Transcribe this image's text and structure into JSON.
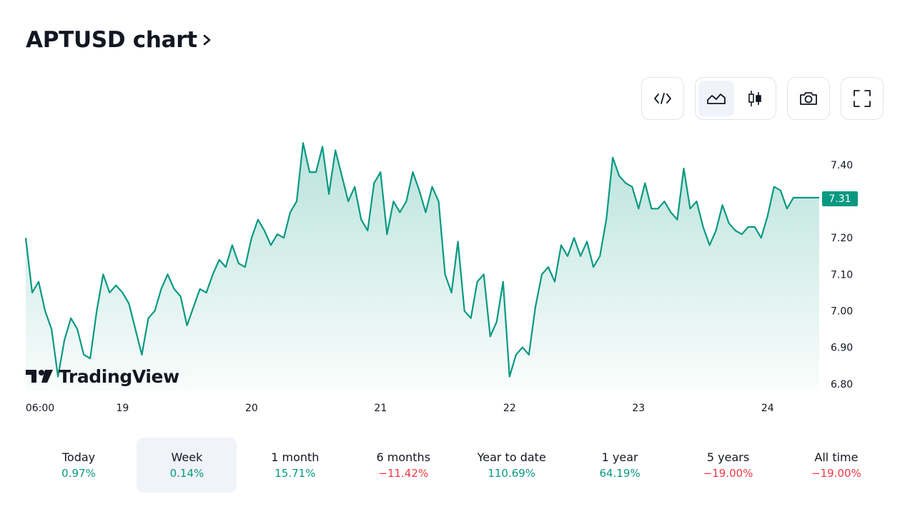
{
  "header": {
    "title": "APTUSD chart",
    "chevron": "chevron-right-icon"
  },
  "toolbar": {
    "buttons": [
      {
        "name": "embed-button",
        "icon": "code-icon"
      },
      {
        "name": "area-chart-button",
        "icon": "area-chart-icon",
        "active": true
      },
      {
        "name": "candle-chart-button",
        "icon": "candlestick-icon"
      },
      {
        "name": "screenshot-button",
        "icon": "camera-icon"
      },
      {
        "name": "fullscreen-button",
        "icon": "fullscreen-icon"
      }
    ]
  },
  "logo": {
    "text": "TradingView",
    "icon": "tradingview-logo-icon"
  },
  "current_price": "7.31",
  "colors": {
    "accent": "#089981",
    "negative": "#f23645",
    "active_bg": "#f0f3fa"
  },
  "chart_data": {
    "type": "area",
    "title": "",
    "xlabel": "",
    "ylabel": "",
    "ylim": [
      6.78,
      7.48
    ],
    "y_ticks": [
      "6.80",
      "6.90",
      "7.00",
      "7.10",
      "7.20",
      "7.30",
      "7.40"
    ],
    "x_ticks": [
      {
        "label": "06:00",
        "x": 0.0
      },
      {
        "label": "19",
        "x": 0.75
      },
      {
        "label": "20",
        "x": 1.75
      },
      {
        "label": "21",
        "x": 2.75
      },
      {
        "label": "22",
        "x": 3.75
      },
      {
        "label": "23",
        "x": 4.75
      },
      {
        "label": "24",
        "x": 5.75
      }
    ],
    "x_range": [
      0,
      6.15
    ],
    "series": [
      {
        "x": [
          0,
          0.05,
          0.1,
          0.15,
          0.2,
          0.25,
          0.3,
          0.35,
          0.4,
          0.45,
          0.5,
          0.55,
          0.6,
          0.65,
          0.7,
          0.75,
          0.8,
          0.85,
          0.9,
          0.95,
          1.0,
          1.05,
          1.1,
          1.15,
          1.2,
          1.25,
          1.3,
          1.35,
          1.4,
          1.45,
          1.5,
          1.55,
          1.6,
          1.65,
          1.7,
          1.75,
          1.8,
          1.85,
          1.9,
          1.95,
          2.0,
          2.05,
          2.1,
          2.15,
          2.2,
          2.25,
          2.3,
          2.35,
          2.4,
          2.45,
          2.5,
          2.55,
          2.6,
          2.65,
          2.7,
          2.75,
          2.8,
          2.85,
          2.9,
          2.95,
          3.0,
          3.05,
          3.1,
          3.15,
          3.2,
          3.25,
          3.3,
          3.35,
          3.4,
          3.45,
          3.5,
          3.55,
          3.6,
          3.65,
          3.7,
          3.75,
          3.8,
          3.85,
          3.9,
          3.95,
          4.0,
          4.05,
          4.1,
          4.15,
          4.2,
          4.25,
          4.3,
          4.35,
          4.4,
          4.45,
          4.5,
          4.55,
          4.6,
          4.65,
          4.7,
          4.75,
          4.8,
          4.85,
          4.9,
          4.95,
          5.0,
          5.05,
          5.1,
          5.15,
          5.2,
          5.25,
          5.3,
          5.35,
          5.4,
          5.45,
          5.5,
          5.55,
          5.6,
          5.65,
          5.7,
          5.75,
          5.8,
          5.85,
          5.9,
          5.95,
          6.0,
          6.05,
          6.1,
          6.15
        ],
        "values": [
          7.2,
          7.05,
          7.08,
          7.0,
          6.95,
          6.82,
          6.92,
          6.98,
          6.95,
          6.88,
          6.87,
          7.0,
          7.1,
          7.05,
          7.07,
          7.05,
          7.02,
          6.95,
          6.88,
          6.98,
          7.0,
          7.06,
          7.1,
          7.06,
          7.04,
          6.96,
          7.01,
          7.06,
          7.05,
          7.1,
          7.14,
          7.12,
          7.18,
          7.13,
          7.12,
          7.2,
          7.25,
          7.22,
          7.18,
          7.21,
          7.2,
          7.27,
          7.3,
          7.46,
          7.38,
          7.38,
          7.45,
          7.32,
          7.44,
          7.37,
          7.3,
          7.34,
          7.25,
          7.22,
          7.35,
          7.38,
          7.21,
          7.3,
          7.27,
          7.3,
          7.38,
          7.33,
          7.27,
          7.34,
          7.3,
          7.1,
          7.05,
          7.19,
          7.0,
          6.98,
          7.08,
          7.1,
          6.93,
          6.97,
          7.08,
          6.82,
          6.88,
          6.9,
          6.88,
          7.01,
          7.1,
          7.12,
          7.08,
          7.18,
          7.15,
          7.2,
          7.15,
          7.19,
          7.12,
          7.15,
          7.25,
          7.42,
          7.37,
          7.35,
          7.34,
          7.28,
          7.35,
          7.28,
          7.28,
          7.3,
          7.27,
          7.25,
          7.39,
          7.28,
          7.3,
          7.23,
          7.18,
          7.22,
          7.29,
          7.24,
          7.22,
          7.21,
          7.23,
          7.23,
          7.2,
          7.26,
          7.34,
          7.33,
          7.28,
          7.31,
          7.31,
          7.31,
          7.31,
          7.31
        ]
      }
    ]
  },
  "periods": [
    {
      "label": "Today",
      "change": "0.97%",
      "dir": "pos"
    },
    {
      "label": "Week",
      "change": "0.14%",
      "dir": "pos",
      "active": true
    },
    {
      "label": "1 month",
      "change": "15.71%",
      "dir": "pos"
    },
    {
      "label": "6 months",
      "change": "−11.42%",
      "dir": "neg"
    },
    {
      "label": "Year to date",
      "change": "110.69%",
      "dir": "pos"
    },
    {
      "label": "1 year",
      "change": "64.19%",
      "dir": "pos"
    },
    {
      "label": "5 years",
      "change": "−19.00%",
      "dir": "neg"
    },
    {
      "label": "All time",
      "change": "−19.00%",
      "dir": "neg"
    }
  ]
}
